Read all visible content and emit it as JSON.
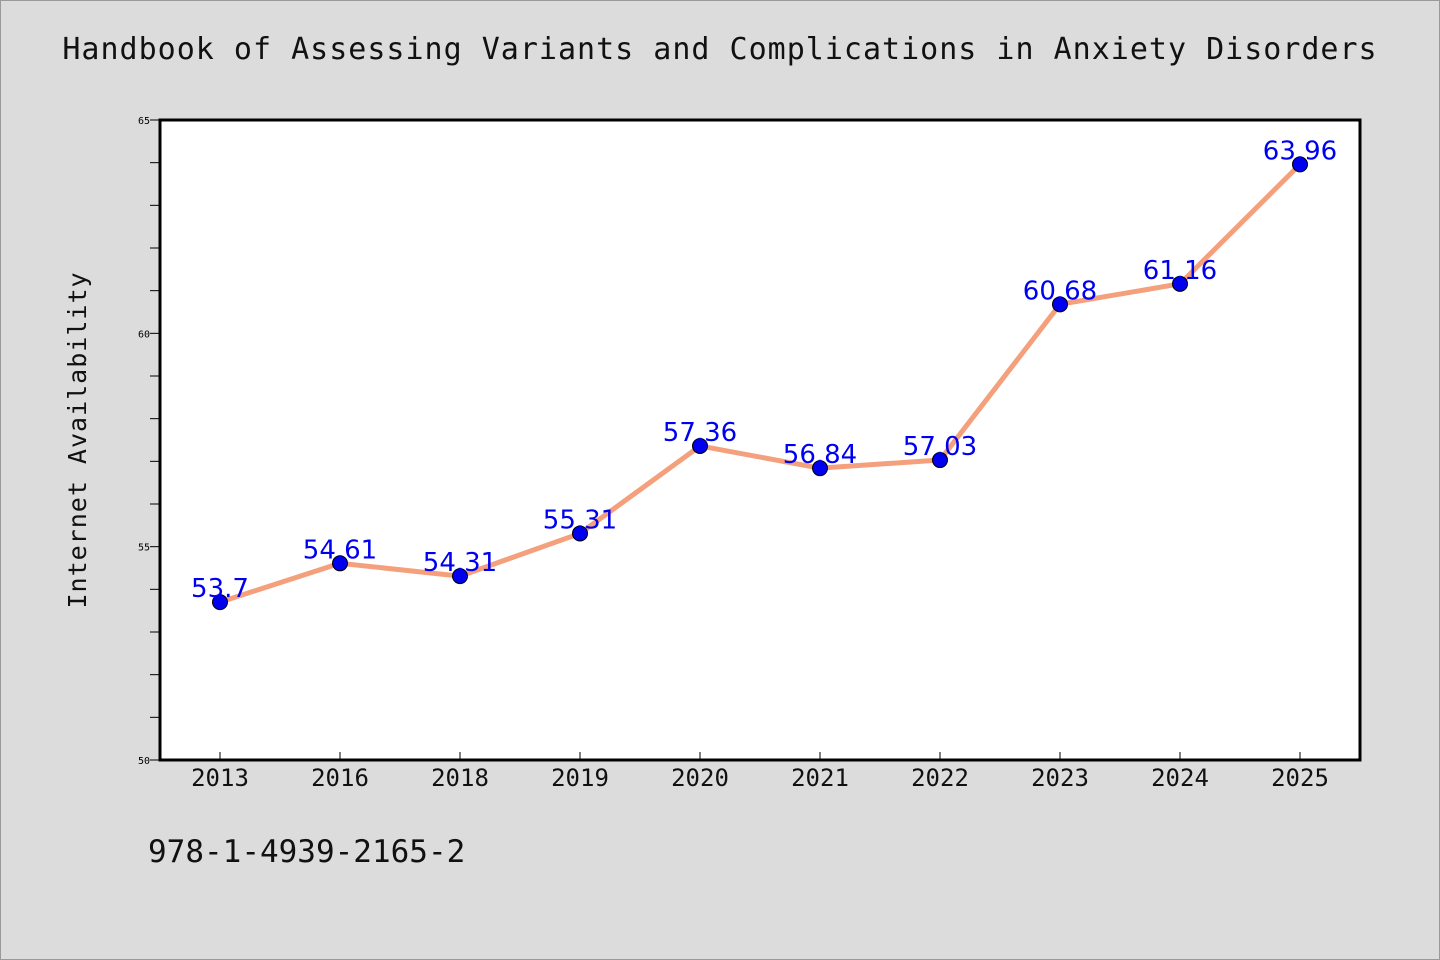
{
  "header": {
    "title": "Handbook of Assessing Variants and Complications in Anxiety Disorders"
  },
  "footer": {
    "isbn": "978-1-4939-2165-2"
  },
  "colors": {
    "line": "#f4a07c",
    "marker": "#0000f0",
    "label": "#0000f0",
    "plot_bg": "#ffffff",
    "page_bg": "#dcdcdc"
  },
  "chart_data": {
    "type": "line",
    "title": "Handbook of Assessing Variants and Complications in Anxiety Disorders",
    "xlabel": "",
    "ylabel": "Internet Availability",
    "categories": [
      "2013",
      "2016",
      "2018",
      "2019",
      "2020",
      "2021",
      "2022",
      "2023",
      "2024",
      "2025"
    ],
    "series": [
      {
        "values": [
          53.7,
          54.61,
          54.31,
          55.31,
          57.36,
          56.84,
          57.03,
          60.68,
          61.16,
          63.96
        ]
      }
    ],
    "data_labels": [
      "53.7",
      "54.61",
      "54.31",
      "55.31",
      "57.36",
      "56.84",
      "57.03",
      "60.68",
      "61.16",
      "63.96"
    ],
    "ylim": [
      50,
      65
    ],
    "yticks": [
      "50",
      "55",
      "60",
      "65"
    ],
    "grid": false,
    "legend": "none"
  }
}
